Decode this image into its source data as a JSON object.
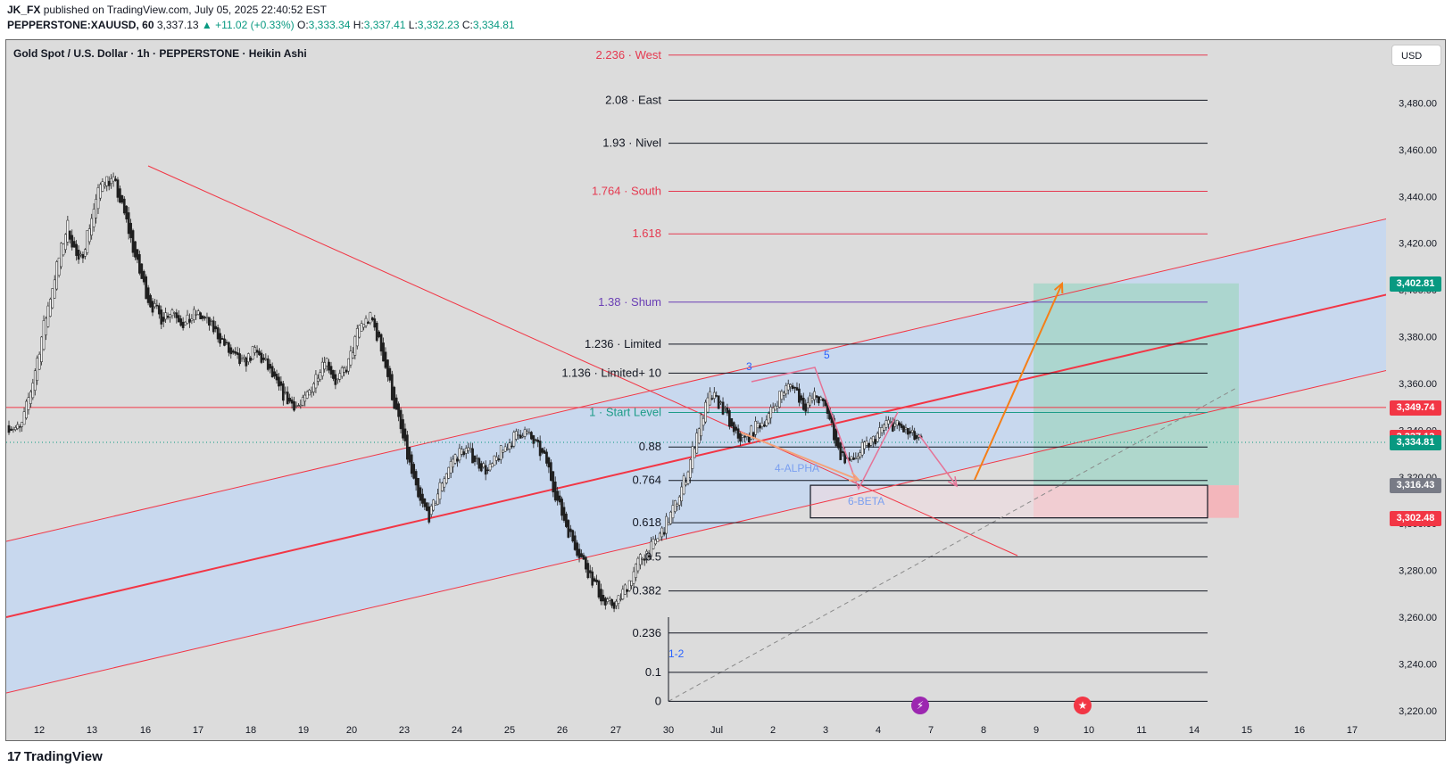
{
  "header": {
    "publisher": "JK_FX",
    "published_text": " published on TradingView.com, July 05, 2025 22:40:52 EST",
    "symbol": "PEPPERSTONE:XAUUSD, 60",
    "last": "3,337.13",
    "change": "+11.02 (+0.33%)",
    "o_label": "O:",
    "o": "3,333.34",
    "h_label": "H:",
    "h": "3,337.41",
    "l_label": "L:",
    "l": "3,332.23",
    "c_label": "C:",
    "c": "3,334.81"
  },
  "legend": "Gold Spot / U.S. Dollar · 1h · PEPPERSTONE · Heikin Ashi",
  "currency": "USD",
  "footer_logo": "TradingView",
  "colors": {
    "background": "#dcdcdc",
    "channel_fill": "#c8d8ee",
    "red_line": "#f23645",
    "up_candle": "#1f1f1f",
    "down_candle": "#1f1f1f",
    "fib_red": "#e53950",
    "fib_purple": "#6a3fb5",
    "fib_teal": "#1e9c88",
    "fib_black": "#131722",
    "target_green": "#a7d6c9",
    "stop_red": "#f3b3b8",
    "orange": "#f57f17",
    "pink": "#e57396",
    "blue_label": "#2962ff"
  },
  "chart_data": {
    "type": "candlestick",
    "title": "Gold Spot / U.S. Dollar · 1h · PEPPERSTONE · Heikin Ashi",
    "ylim": [
      3210,
      3505
    ],
    "y_ticks": [
      3220,
      3240,
      3260,
      3280,
      3300,
      3320,
      3340,
      3360,
      3380,
      3400,
      3420,
      3440,
      3460,
      3480
    ],
    "y_tick_labels": [
      "3,220.00",
      "3,240.00",
      "3,260.00",
      "3,280.00",
      "3,300.00",
      "3,320.00",
      "3,340.00",
      "3,360.00",
      "3,380.00",
      "3,400.00",
      "3,420.00",
      "3,440.00",
      "3,460.00",
      "3,480.00"
    ],
    "x_tick_labels": [
      "12",
      "13",
      "16",
      "17",
      "18",
      "19",
      "20",
      "23",
      "24",
      "25",
      "26",
      "27",
      "30",
      "Jul",
      "2",
      "3",
      "4",
      "7",
      "8",
      "9",
      "10",
      "11",
      "14",
      "15",
      "16",
      "17"
    ],
    "price_path": [
      [
        0,
        3342
      ],
      [
        1,
        3340
      ],
      [
        2,
        3360
      ],
      [
        3,
        3385
      ],
      [
        4,
        3408
      ],
      [
        5,
        3428
      ],
      [
        6,
        3410
      ],
      [
        7,
        3430
      ],
      [
        8,
        3448
      ],
      [
        9,
        3446
      ],
      [
        10,
        3430
      ],
      [
        11,
        3410
      ],
      [
        12,
        3395
      ],
      [
        13,
        3388
      ],
      [
        14,
        3392
      ],
      [
        15,
        3385
      ],
      [
        16,
        3390
      ],
      [
        17,
        3386
      ],
      [
        18,
        3380
      ],
      [
        19,
        3372
      ],
      [
        20,
        3368
      ],
      [
        21,
        3374
      ],
      [
        22,
        3368
      ],
      [
        23,
        3358
      ],
      [
        24,
        3352
      ],
      [
        25,
        3350
      ],
      [
        26,
        3360
      ],
      [
        27,
        3372
      ],
      [
        28,
        3360
      ],
      [
        29,
        3368
      ],
      [
        30,
        3385
      ],
      [
        31,
        3388
      ],
      [
        32,
        3372
      ],
      [
        33,
        3350
      ],
      [
        34,
        3330
      ],
      [
        35,
        3310
      ],
      [
        36,
        3303
      ],
      [
        37,
        3318
      ],
      [
        38,
        3328
      ],
      [
        39,
        3332
      ],
      [
        40,
        3327
      ],
      [
        41,
        3322
      ],
      [
        42,
        3330
      ],
      [
        43,
        3336
      ],
      [
        44,
        3340
      ],
      [
        45,
        3334
      ],
      [
        46,
        3326
      ],
      [
        47,
        3308
      ],
      [
        48,
        3295
      ],
      [
        49,
        3285
      ],
      [
        50,
        3275
      ],
      [
        51,
        3265
      ],
      [
        52,
        3266
      ],
      [
        53,
        3275
      ],
      [
        54,
        3285
      ],
      [
        55,
        3290
      ],
      [
        56,
        3298
      ],
      [
        57,
        3308
      ],
      [
        58,
        3322
      ],
      [
        59,
        3342
      ],
      [
        60,
        3355
      ],
      [
        61,
        3350
      ],
      [
        62,
        3338
      ],
      [
        63,
        3336
      ],
      [
        64,
        3342
      ],
      [
        65,
        3346
      ],
      [
        66,
        3356
      ],
      [
        67,
        3360
      ],
      [
        68,
        3350
      ],
      [
        69,
        3355
      ],
      [
        70,
        3348
      ],
      [
        71,
        3330
      ],
      [
        72,
        3326
      ],
      [
        73,
        3332
      ],
      [
        74,
        3336
      ],
      [
        75,
        3343
      ],
      [
        76,
        3342
      ],
      [
        77,
        3338
      ],
      [
        78,
        3335
      ]
    ],
    "last_price": 3334.81,
    "price_badges": [
      {
        "label": "3,402.81",
        "value": 3402.81,
        "color": "#089981"
      },
      {
        "label": "3,349.74",
        "value": 3349.74,
        "color": "#f23645"
      },
      {
        "label": "3,337.13",
        "value": 3337.13,
        "color": "#f23645"
      },
      {
        "label": "3,334.81",
        "value": 3334.81,
        "color": "#089981"
      },
      {
        "label": "3,316.43",
        "value": 3316.43,
        "color": "#787b86"
      },
      {
        "label": "3,302.48",
        "value": 3302.48,
        "color": "#f23645"
      }
    ],
    "fib_levels": [
      {
        "label": "2.236 · West",
        "value": 3500.5,
        "color": "#e53950"
      },
      {
        "label": "2.08 · East",
        "value": 3481.2,
        "color": "#131722"
      },
      {
        "label": "1.93 · Nivel",
        "value": 3462.8,
        "color": "#131722"
      },
      {
        "label": "1.764 · South",
        "value": 3442.2,
        "color": "#e53950"
      },
      {
        "label": "1.618",
        "value": 3424.0,
        "color": "#e53950"
      },
      {
        "label": "1.38 · Shum",
        "value": 3394.8,
        "color": "#6a3fb5"
      },
      {
        "label": "1.236 · Limited",
        "value": 3376.8,
        "color": "#131722"
      },
      {
        "label": "1.136 · Limited+ 10",
        "value": 3364.4,
        "color": "#131722"
      },
      {
        "label": "1 · Start Level",
        "value": 3347.6,
        "color": "#1e9c88"
      },
      {
        "label": "0.88",
        "value": 3332.8,
        "color": "#131722"
      },
      {
        "label": "0.764",
        "value": 3318.5,
        "color": "#131722"
      },
      {
        "label": "0.618",
        "value": 3300.4,
        "color": "#131722"
      },
      {
        "label": "0.5",
        "value": 3285.8,
        "color": "#131722"
      },
      {
        "label": "0.382",
        "value": 3271.2,
        "color": "#131722"
      },
      {
        "label": "0.236",
        "value": 3253.2,
        "color": "#131722"
      },
      {
        "label": "0.1",
        "value": 3236.4,
        "color": "#131722"
      },
      {
        "label": "0",
        "value": 3224.0,
        "color": "#131722"
      }
    ],
    "wave_labels": [
      "1-2",
      "3",
      "5",
      "4-ALPHA",
      "6-BETA"
    ]
  }
}
